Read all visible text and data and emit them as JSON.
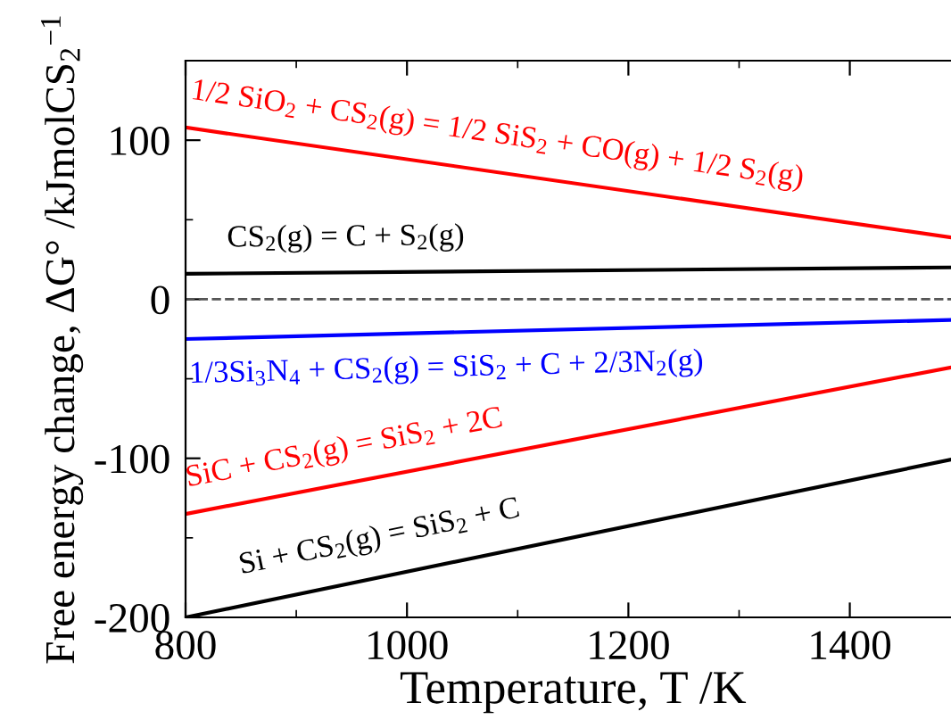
{
  "chart_data": {
    "type": "line",
    "xlabel": "Temperature, T /K",
    "ylabel": "Free energy change, ΔG° /kJmolCS$_{2}$$^{−1}$",
    "x": [
      800,
      1490
    ],
    "series": [
      {
        "name": "1/2 SiO$_{2}$ + CS$_{2}$(g) = 1/2 SiS$_{2}$ + CO(g) + 1/2 S$_{2}$(g)",
        "color": "#ff0000",
        "values": [
          108,
          39
        ]
      },
      {
        "name": "CS$_{2}$(g) = C + S$_{2}$(g)",
        "color": "#000000",
        "values": [
          16,
          20
        ]
      },
      {
        "name": "1/3Si$_{3}$N$_{4}$ + CS$_{2}$(g) = SiS$_{2}$ + C + 2/3N$_{2}$(g)",
        "color": "#0000ff",
        "values": [
          -25,
          -13
        ]
      },
      {
        "name": "SiC + CS$_{2}$(g) = SiS$_{2}$ + 2C",
        "color": "#ff0000",
        "values": [
          -135,
          -43
        ]
      },
      {
        "name": "Si + CS$_{2}$(g) = SiS$_{2}$ + C",
        "color": "#000000",
        "values": [
          -200,
          -101
        ]
      }
    ],
    "xlim": [
      800,
      1490
    ],
    "ylim": [
      -200,
      150
    ],
    "xticks": [
      800,
      1000,
      1200,
      1400
    ],
    "yticks": [
      -200,
      -100,
      0,
      100
    ],
    "ref_lines": [
      {
        "axis": "y",
        "value": 0,
        "color": "#555555",
        "line_style": "dashed"
      }
    ],
    "grid": false,
    "line_style": "solid",
    "marker": "none"
  }
}
